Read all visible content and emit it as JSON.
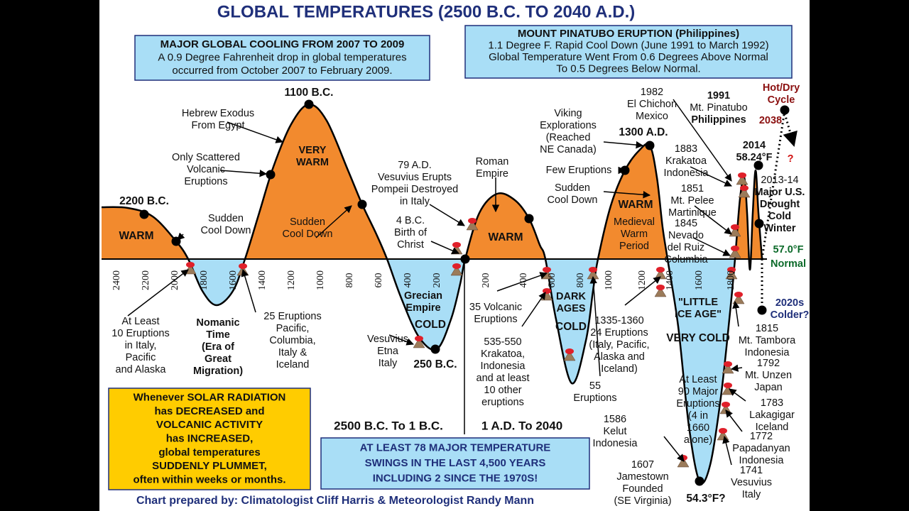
{
  "title": "GLOBAL TEMPERATURES (2500 B.C. TO 2040 A.D.)",
  "boxes": [
    {
      "lines": [
        "MAJOR GLOBAL COOLING FROM 2007 TO 2009",
        "A 0.9 Degree Fahrenheit drop in global temperatures",
        "occurred from October 2007 to February 2009."
      ]
    },
    {
      "lines": [
        "MOUNT PINATUBO ERUPTION (Philippines)",
        "1.1 Degree F. Rapid Cool Down (June 1991 to March 1992)",
        "Global Temperature Went From 0.6 Degrees Above Normal",
        "To 0.5 Degrees Below Normal."
      ]
    },
    {
      "lines": [
        "Whenever SOLAR RADIATION",
        "has DECREASED and",
        "VOLCANIC ACTIVITY",
        "has INCREASED,",
        "global temperatures",
        "SUDDENLY PLUMMET,",
        "often within weeks or months."
      ]
    },
    {
      "lines": [
        "AT LEAST 78 MAJOR TEMPERATURE",
        "SWINGS IN THE LAST 4,500 YEARS",
        "INCLUDING 2 SINCE THE 1970S!"
      ]
    }
  ],
  "eras": [
    "2500 B.C. To 1 B.C.",
    "1 A.D. To 2040"
  ],
  "axis_bc": [
    "2400",
    "2200",
    "2000",
    "1800",
    "1600",
    "1400",
    "1200",
    "1000",
    "800",
    "600",
    "400",
    "200"
  ],
  "axis_ad": [
    "200",
    "400",
    "600",
    "800",
    "1000",
    "1200",
    "1400",
    "1600",
    "1800"
  ],
  "annotations": [
    {
      "lines": [
        "2200 B.C."
      ]
    },
    {
      "lines": [
        "WARM"
      ]
    },
    {
      "lines": [
        "Sudden",
        "Cool Down"
      ]
    },
    {
      "lines": [
        "1100 B.C."
      ]
    },
    {
      "lines": [
        "Hebrew Exodus",
        "From Egypt"
      ]
    },
    {
      "lines": [
        "Only Scattered",
        "Volcanic",
        "Eruptions"
      ]
    },
    {
      "lines": [
        "VERY",
        "WARM"
      ]
    },
    {
      "lines": [
        "Sudden",
        "Cool Down"
      ]
    },
    {
      "lines": [
        "79 A.D.",
        "Vesuvius Erupts",
        "Pompeii Destroyed",
        "in Italy"
      ]
    },
    {
      "lines": [
        "4 B.C.",
        "Birth of",
        "Christ"
      ]
    },
    {
      "lines": [
        "Roman",
        "Empire"
      ]
    },
    {
      "lines": [
        "WARM"
      ]
    },
    {
      "lines": [
        "Viking",
        "Explorations",
        "(Reached",
        "NE Canada)"
      ]
    },
    {
      "lines": [
        "1300 A.D."
      ]
    },
    {
      "lines": [
        "Few Eruptions"
      ]
    },
    {
      "lines": [
        "Sudden",
        "Cool Down"
      ]
    },
    {
      "lines": [
        "WARM"
      ]
    },
    {
      "lines": [
        "Medieval",
        "Warm",
        "Period"
      ]
    },
    {
      "lines": [
        "1982",
        "El Chichon",
        "Mexico"
      ]
    },
    {
      "lines": [
        "1991",
        "Mt. Pinatubo",
        "Philippines"
      ]
    },
    {
      "lines": [
        "Hot/Dry",
        "Cycle"
      ]
    },
    {
      "lines": [
        "2038"
      ]
    },
    {
      "lines": [
        "?"
      ]
    },
    {
      "lines": [
        "2014",
        "58.24°F"
      ]
    },
    {
      "lines": [
        "1883",
        "Krakatoa",
        "Indonesia"
      ]
    },
    {
      "lines": [
        "2013-14",
        "Major U.S.",
        "Drought",
        "Cold",
        "Winter"
      ]
    },
    {
      "lines": [
        "1851",
        "Mt. Pelee",
        "Martinique"
      ]
    },
    {
      "lines": [
        "1845",
        "Nevado",
        "del Ruiz",
        "Columbia"
      ]
    },
    {
      "lines": [
        "57.0°F"
      ]
    },
    {
      "lines": [
        "Normal"
      ]
    },
    {
      "lines": [
        "2020s",
        "Colder?"
      ]
    },
    {
      "lines": [
        "At Least",
        "10 Eruptions",
        "in Italy,",
        "Pacific",
        "and Alaska"
      ]
    },
    {
      "lines": [
        "Nomanic",
        "Time",
        "(Era of",
        "Great",
        "Migration)"
      ]
    },
    {
      "lines": [
        "25 Eruptions",
        "Pacific,",
        "Columbia,",
        "Italy &",
        "Iceland"
      ]
    },
    {
      "lines": [
        "Grecian",
        "Empire"
      ]
    },
    {
      "lines": [
        "COLD"
      ]
    },
    {
      "lines": [
        "Vesuvius",
        "Etna",
        "Italy"
      ]
    },
    {
      "lines": [
        "250 B.C."
      ]
    },
    {
      "lines": [
        "35 Volcanic",
        "Eruptions"
      ]
    },
    {
      "lines": [
        "535-550",
        "Krakatoa,",
        "Indonesia",
        "and at least",
        "10 other",
        "eruptions"
      ]
    },
    {
      "lines": [
        "DARK",
        "AGES"
      ]
    },
    {
      "lines": [
        "COLD"
      ]
    },
    {
      "lines": [
        "55",
        "Eruptions"
      ]
    },
    {
      "lines": [
        "1335-1360",
        "24 Eruptions",
        "(Italy, Pacific,",
        "Alaska and",
        "Iceland)"
      ]
    },
    {
      "lines": [
        "\"LITTLE",
        "ICE AGE\""
      ]
    },
    {
      "lines": [
        "VERY COLD"
      ]
    },
    {
      "lines": [
        "At Least",
        "90 Major",
        "Eruptions",
        "(4 in",
        "1660",
        "alone)"
      ]
    },
    {
      "lines": [
        "1815",
        "Mt. Tambora",
        "Indonesia"
      ]
    },
    {
      "lines": [
        "1792",
        "Mt. Unzen",
        "Japan"
      ]
    },
    {
      "lines": [
        "1783",
        "Lakagigar",
        "Iceland"
      ]
    },
    {
      "lines": [
        "1772",
        "Papadanyan",
        "Indonesia"
      ]
    },
    {
      "lines": [
        "1741",
        "Vesuvius",
        "Italy"
      ]
    },
    {
      "lines": [
        "1586",
        "Kelut",
        "Indonesia"
      ]
    },
    {
      "lines": [
        "1607",
        "Jamestown",
        "Founded",
        "(SE Virginia)"
      ]
    },
    {
      "lines": [
        "54.3°F?"
      ]
    }
  ],
  "credit": "Chart prepared by: Climatologist Cliff Harris & Meteorologist Randy Mann"
}
